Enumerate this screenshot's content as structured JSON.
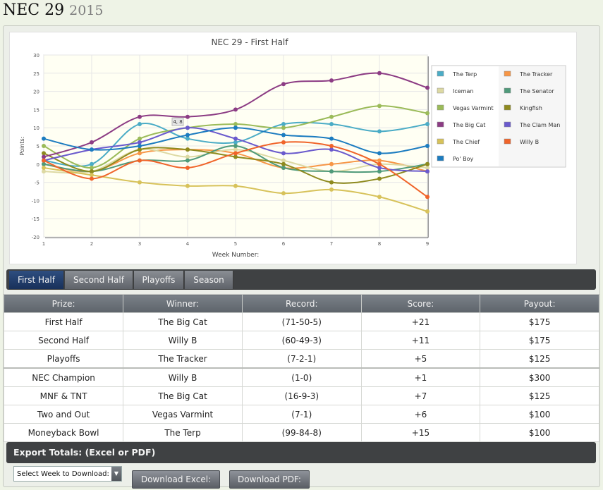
{
  "page": {
    "title": "NEC 29",
    "year": "2015"
  },
  "tabs": [
    {
      "label": "First Half",
      "active": true
    },
    {
      "label": "Second Half",
      "active": false
    },
    {
      "label": "Playoffs",
      "active": false
    },
    {
      "label": "Season",
      "active": false
    }
  ],
  "table": {
    "headers": [
      "Prize:",
      "Winner:",
      "Record:",
      "Score:",
      "Payout:"
    ],
    "rows": [
      [
        "First Half",
        "The Big Cat",
        "(71-50-5)",
        "+21",
        "$175"
      ],
      [
        "Second Half",
        "Willy B",
        "(60-49-3)",
        "+11",
        "$175"
      ],
      [
        "Playoffs",
        "The Tracker",
        "(7-2-1)",
        "+5",
        "$125"
      ],
      [
        "NEC Champion",
        "Willy B",
        "(1-0)",
        "+1",
        "$300"
      ],
      [
        "MNF & TNT",
        "The Big Cat",
        "(16-9-3)",
        "+7",
        "$125"
      ],
      [
        "Two and Out",
        "Vegas Varmint",
        "(7-1)",
        "+6",
        "$100"
      ],
      [
        "Moneyback Bowl",
        "The Terp",
        "(99-84-8)",
        "+15",
        "$100"
      ]
    ]
  },
  "export": {
    "title": "Export Totals: (Excel or PDF)",
    "select_value": "Select Week to Download:",
    "excel_label": "Download Excel:",
    "pdf_label": "Download PDF:"
  },
  "chart_data": {
    "type": "line",
    "title": "NEC 29 - First Half",
    "xlabel": "Week Number:",
    "ylabel": "Points:",
    "x": [
      1,
      2,
      3,
      4,
      5,
      6,
      7,
      8,
      9
    ],
    "ylim": [
      -20,
      30
    ],
    "yticks": [
      30,
      25,
      20,
      15,
      10,
      5,
      0,
      -5,
      -10,
      -15,
      -20
    ],
    "grid": true,
    "legend_position": "right",
    "tooltip": "4, 8",
    "series": [
      {
        "name": "The Terp",
        "color": "#4bacc6",
        "values": [
          1,
          0,
          11,
          7,
          6,
          11,
          11,
          9,
          11
        ]
      },
      {
        "name": "The Tracker",
        "color": "#f79646",
        "values": [
          0,
          -2,
          3,
          4,
          3,
          -1,
          0,
          1,
          -2
        ]
      },
      {
        "name": "Iceman",
        "color": "#ddd9a3",
        "values": [
          -2,
          -2,
          4,
          2,
          4,
          1,
          -2,
          0,
          -1
        ]
      },
      {
        "name": "The Senator",
        "color": "#4f9a7a",
        "values": [
          0,
          -2,
          1,
          1,
          5,
          -1,
          -2,
          -2,
          0
        ]
      },
      {
        "name": "Vegas Varmint",
        "color": "#9bbb59",
        "values": [
          5,
          -1,
          7,
          10,
          11,
          10,
          13,
          16,
          14
        ]
      },
      {
        "name": "Kingfish",
        "color": "#8e8a1e",
        "values": [
          3,
          -2,
          4,
          4,
          2,
          0,
          -5,
          -4,
          0
        ]
      },
      {
        "name": "The Big Cat",
        "color": "#8c3c84",
        "values": [
          2,
          6,
          13,
          13,
          15,
          22,
          23,
          25,
          21
        ]
      },
      {
        "name": "The Clam Man",
        "color": "#6a5acd",
        "values": [
          1,
          4,
          6,
          10,
          7,
          3,
          4,
          -1,
          -2
        ]
      },
      {
        "name": "The Chief",
        "color": "#d7c25a",
        "values": [
          -1,
          -3,
          -5,
          -6,
          -6,
          -8,
          -7,
          -9,
          -13
        ]
      },
      {
        "name": "Willy B",
        "color": "#f0642a",
        "values": [
          1,
          -4,
          1,
          -1,
          3,
          6,
          5,
          0,
          -9
        ]
      },
      {
        "name": "Po' Boy",
        "color": "#1c7cc0",
        "values": [
          7,
          4,
          5,
          8,
          10,
          8,
          7,
          3,
          5
        ]
      }
    ]
  }
}
